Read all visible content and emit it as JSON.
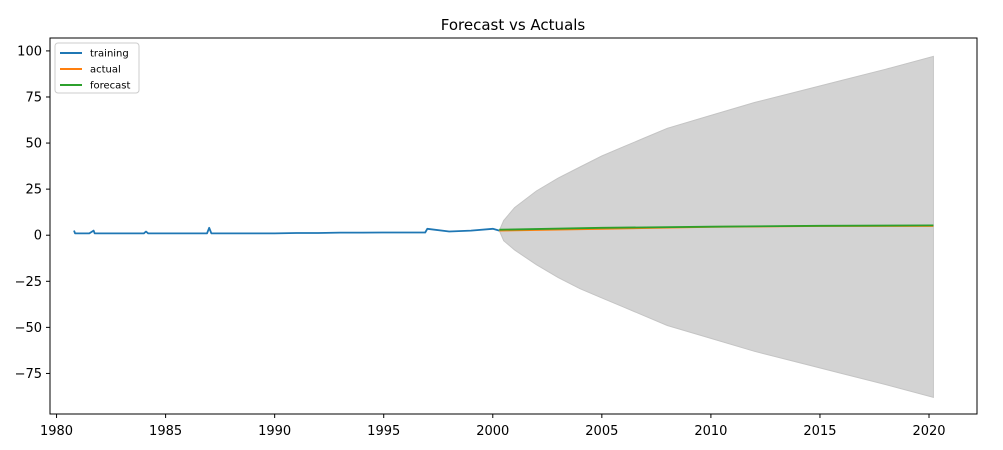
{
  "chart_data": {
    "type": "line",
    "title": "Forecast vs Actuals",
    "xlabel": "",
    "ylabel": "",
    "xlim": [
      1979.7,
      2022.2
    ],
    "ylim": [
      -97,
      107
    ],
    "x_ticks": [
      1980,
      1985,
      1990,
      1995,
      2000,
      2005,
      2010,
      2015,
      2020
    ],
    "y_ticks": [
      100,
      75,
      50,
      25,
      0,
      -25,
      -50,
      -75
    ],
    "legend_position": "top-left",
    "series": [
      {
        "name": "training",
        "color": "#1f77b4",
        "x": [
          1980.8,
          1980.85,
          1981.0,
          1981.5,
          1981.7,
          1981.75,
          1981.9,
          1982.0,
          1983.0,
          1984.0,
          1984.1,
          1984.2,
          1985.0,
          1985.5,
          1986.0,
          1986.9,
          1987.0,
          1987.1,
          1988.0,
          1989.0,
          1990.0,
          1991.0,
          1992.0,
          1993.0,
          1994.0,
          1995.0,
          1996.0,
          1996.9,
          1997.0,
          1998.0,
          1999.0,
          2000.0,
          2000.3
        ],
        "y": [
          2.5,
          1.0,
          1.0,
          1.0,
          2.5,
          1.0,
          1.0,
          1.0,
          1.0,
          1.0,
          2.0,
          1.0,
          1.0,
          1.0,
          1.0,
          1.0,
          4.0,
          1.0,
          1.0,
          1.0,
          1.0,
          1.2,
          1.2,
          1.4,
          1.4,
          1.5,
          1.5,
          1.5,
          3.5,
          2.0,
          2.5,
          3.5,
          2.5
        ]
      },
      {
        "name": "actual",
        "color": "#ff7f0e",
        "x": [
          2000.3,
          2005,
          2010,
          2015,
          2020.2
        ],
        "y": [
          2.5,
          3.5,
          4.5,
          5.0,
          5.0
        ]
      },
      {
        "name": "forecast",
        "color": "#2ca02c",
        "x": [
          2000.3,
          2005,
          2010,
          2015,
          2020.2
        ],
        "y": [
          3.0,
          4.0,
          4.6,
          5.1,
          5.3
        ]
      }
    ],
    "confidence_band": {
      "color": "#d3d3d3",
      "x": [
        2000.3,
        2000.5,
        2001,
        2002,
        2003,
        2004,
        2005,
        2006,
        2007,
        2008,
        2010,
        2012,
        2014,
        2016,
        2018,
        2020.2
      ],
      "upper": [
        2.5,
        8,
        15,
        24,
        31,
        37,
        43,
        48,
        53,
        58,
        65,
        72,
        78,
        84,
        90,
        97
      ],
      "lower": [
        2.5,
        -3,
        -8,
        -16,
        -23,
        -29,
        -34,
        -39,
        -44,
        -49,
        -56,
        -63,
        -69,
        -75,
        -81,
        -88
      ]
    }
  }
}
